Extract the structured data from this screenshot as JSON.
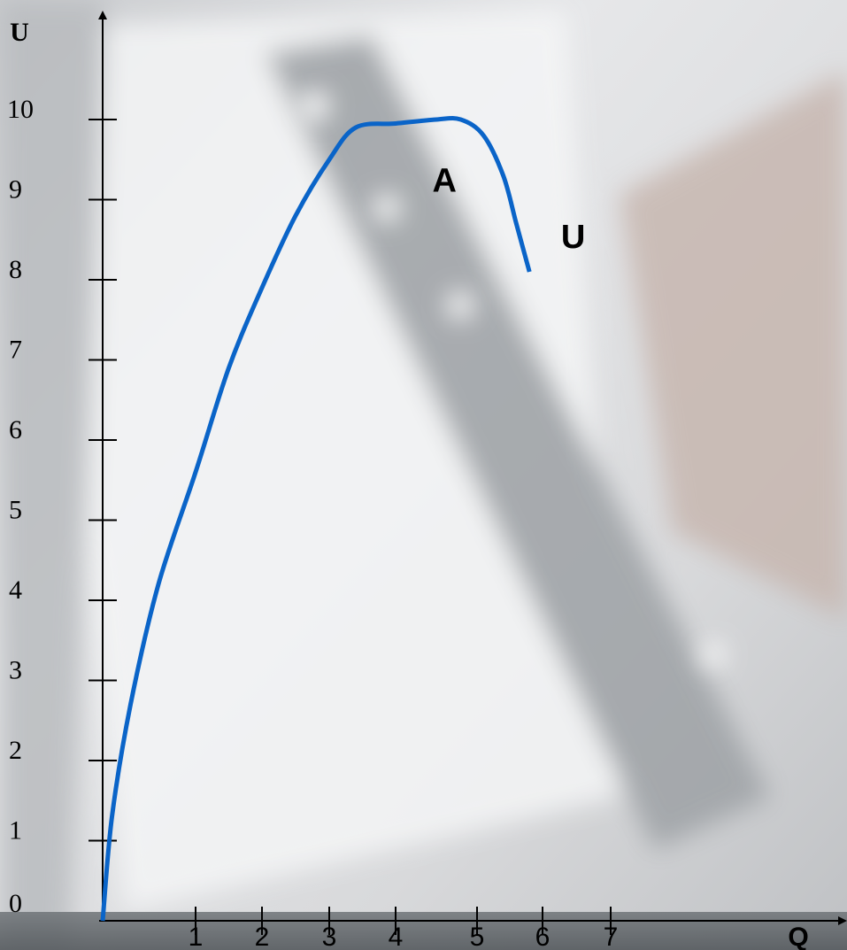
{
  "chart_data": {
    "type": "line",
    "title": "",
    "xlabel": "Q",
    "ylabel": "U",
    "xlim": [
      0,
      7
    ],
    "ylim": [
      0,
      10
    ],
    "x_ticks": [
      "1",
      "2",
      "3",
      "4",
      "5",
      "6",
      "7"
    ],
    "y_ticks": [
      "0",
      "1",
      "2",
      "3",
      "4",
      "5",
      "6",
      "7",
      "8",
      "9",
      "10"
    ],
    "grid": false,
    "legend": "none",
    "series": [
      {
        "color": "#0a64c8",
        "x": [
          0,
          0.1,
          0.3,
          0.6,
          1.0,
          1.5,
          2.0,
          2.5,
          3.0,
          3.4,
          4.0,
          4.5,
          4.8,
          5.1,
          5.4,
          5.6,
          5.8
        ],
        "y": [
          0,
          1.3,
          2.7,
          4.2,
          5.6,
          6.9,
          7.9,
          8.8,
          9.5,
          9.9,
          9.95,
          10.0,
          10.0,
          9.8,
          9.3,
          8.7,
          8.1
        ]
      }
    ],
    "annotations": [
      {
        "text": "A",
        "x": 4.6,
        "y": 9.1
      },
      {
        "text": "U",
        "x": 6.45,
        "y": 8.4
      }
    ]
  }
}
